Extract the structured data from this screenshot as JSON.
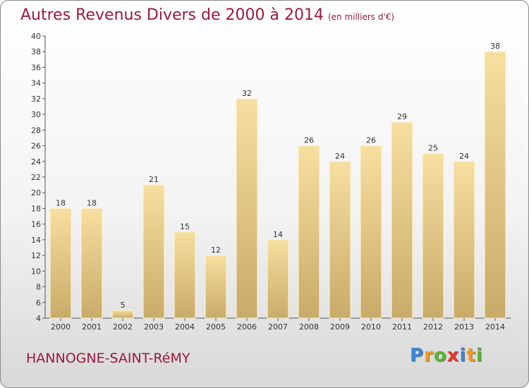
{
  "title": "Autres Revenus Divers de 2000 à 2014",
  "title_unit": "(en milliers d'€)",
  "commune": "HANNOGNE-SAINT-RéMY",
  "logo": {
    "letters": [
      "P",
      "r",
      "o",
      "x",
      "i",
      "t",
      "i"
    ],
    "colors": [
      "#3a86d6",
      "#f29a1f",
      "#5cb531",
      "#e03a2e",
      "#3a86d6",
      "#f29a1f",
      "#5cb531"
    ]
  },
  "colors": {
    "bar_light": "#f7dfa0",
    "bar_dark": "#c8ab68",
    "title": "#9b1b3c"
  },
  "chart_data": {
    "type": "bar",
    "title": "Autres Revenus Divers de 2000 à 2014",
    "categories": [
      "2000",
      "2001",
      "2002",
      "2003",
      "2004",
      "2005",
      "2006",
      "2007",
      "2008",
      "2009",
      "2010",
      "2011",
      "2012",
      "2013",
      "2014"
    ],
    "values": [
      18,
      18,
      5,
      21,
      15,
      12,
      32,
      14,
      26,
      24,
      26,
      29,
      25,
      24,
      38
    ],
    "ylim": [
      4,
      40
    ],
    "yticks": [
      4,
      6,
      8,
      10,
      12,
      14,
      16,
      18,
      20,
      22,
      24,
      26,
      28,
      30,
      32,
      34,
      36,
      38,
      40
    ],
    "grid": false,
    "xlabel": "",
    "ylabel": ""
  }
}
